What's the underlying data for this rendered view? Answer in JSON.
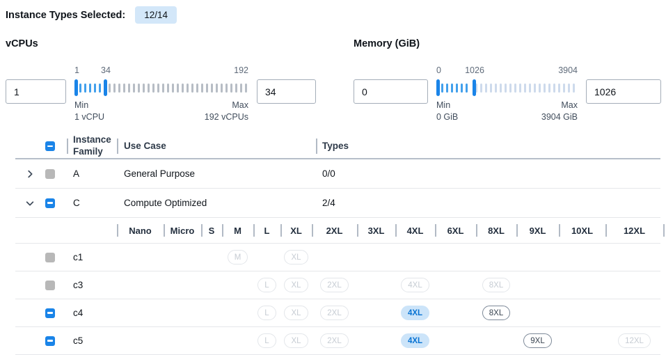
{
  "header": {
    "label": "Instance Types Selected:",
    "badge": "12/14"
  },
  "filters": [
    {
      "title": "vCPUs",
      "lower_input": "1",
      "upper_input": "34",
      "scale": {
        "low": "1",
        "mid": "34",
        "high": "192"
      },
      "numeric": {
        "min": 1,
        "max": 192,
        "lower": 1,
        "upper": 34
      },
      "min_label": "Min",
      "min_detail": "1 vCPU",
      "max_label": "Max",
      "max_detail": "192 vCPUs"
    },
    {
      "title": "Memory (GiB)",
      "lower_input": "0",
      "upper_input": "1026",
      "scale": {
        "low": "0",
        "mid": "1026",
        "high": "3904"
      },
      "numeric": {
        "min": 0,
        "max": 3904,
        "lower": 0,
        "upper": 1026
      },
      "min_label": "Min",
      "min_detail": "0 GiB",
      "max_label": "Max",
      "max_detail": "3904 GiB"
    }
  ],
  "table": {
    "select_all_state": "indeterminate",
    "columns": {
      "family": "Instance Family",
      "use_case": "Use Case",
      "types": "Types"
    },
    "size_columns": [
      "Nano",
      "Micro",
      "S",
      "M",
      "L",
      "XL",
      "2XL",
      "3XL",
      "4XL",
      "6XL",
      "8XL",
      "9XL",
      "10XL",
      "12XL"
    ],
    "groups": [
      {
        "family": "A",
        "use_case": "General Purpose",
        "types": "0/0",
        "expanded": false,
        "checkbox": "disabled",
        "children": []
      },
      {
        "family": "C",
        "use_case": "Compute Optimized",
        "types": "2/4",
        "expanded": true,
        "checkbox": "indeterminate",
        "children": [
          {
            "name": "c1",
            "checkbox": "disabled",
            "sizes": {
              "M": "disabled",
              "XL": "disabled"
            }
          },
          {
            "name": "c3",
            "checkbox": "disabled",
            "sizes": {
              "L": "disabled",
              "XL": "disabled",
              "2XL": "disabled",
              "4XL": "disabled",
              "8XL": "disabled"
            }
          },
          {
            "name": "c4",
            "checkbox": "indeterminate",
            "sizes": {
              "L": "disabled",
              "XL": "disabled",
              "2XL": "disabled",
              "4XL": "selected",
              "8XL": "enabled"
            }
          },
          {
            "name": "c5",
            "checkbox": "indeterminate",
            "sizes": {
              "L": "disabled",
              "XL": "disabled",
              "2XL": "disabled",
              "4XL": "selected",
              "9XL": "enabled",
              "12XL": "disabled"
            }
          }
        ]
      }
    ]
  },
  "colors": {
    "accent_blue": "#1a84e8",
    "tick_blue": "#42a0ec",
    "tick_gray_vcpus": "#b7bdc5",
    "tick_gray_memory": "#cddaec",
    "selected_pill_bg": "#cce4f9",
    "selected_pill_text": "#0873d3",
    "badge_bg": "#d3e7f9",
    "disabled_checkbox_gray": "#b8b8b8"
  }
}
